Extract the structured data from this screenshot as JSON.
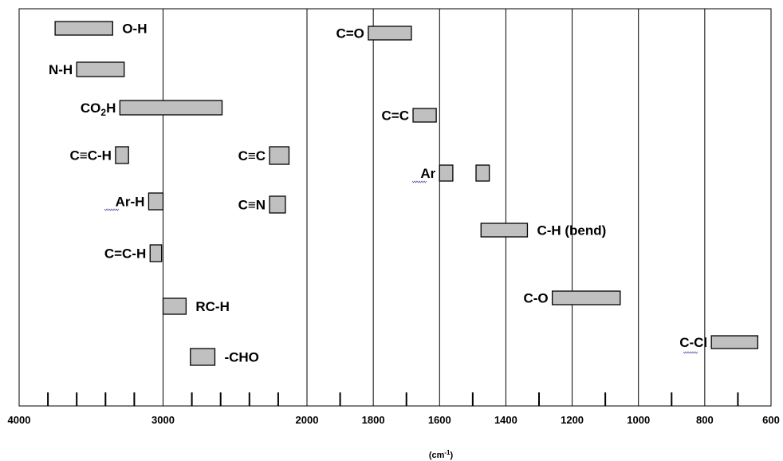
{
  "chart_data": {
    "type": "bar",
    "orientation": "horizontal-range",
    "x_axis": {
      "segments": [
        {
          "from": 4000,
          "to": 2000,
          "tick_labels": [
            4000,
            3000
          ],
          "minor_ticks": [
            3800,
            3600,
            3400,
            3200,
            2800,
            2600,
            2400,
            2200
          ]
        },
        {
          "from": 2000,
          "to": 600,
          "tick_labels": [
            2000,
            1800,
            1600,
            1400,
            1200,
            1000,
            800,
            600
          ],
          "minor_ticks": [
            1900,
            1700,
            1500,
            1300,
            1100,
            900,
            700
          ]
        }
      ],
      "gridlines": [
        3000,
        2000,
        1800,
        1600,
        1400,
        1200,
        1000,
        800
      ],
      "unit_label": "cm",
      "unit_exponent": "-1"
    },
    "bands": [
      {
        "label": "O-H",
        "from": 3750,
        "to": 3350
      },
      {
        "label": "N-H",
        "from": 3600,
        "to": 3270
      },
      {
        "label": "CO",
        "label_sub": "2",
        "label_after": "H",
        "from": 3300,
        "to": 2590
      },
      {
        "label": "C≡C-H",
        "from": 3330,
        "to": 3240
      },
      {
        "label": "Ar-H",
        "from": 3100,
        "to": 3000
      },
      {
        "label": "C=C-H",
        "from": 3090,
        "to": 3010
      },
      {
        "label": "RC-H",
        "from": 3000,
        "to": 2840
      },
      {
        "label": "-CHO",
        "from": 2810,
        "to": 2640
      },
      {
        "label": "C≡C",
        "from": 2260,
        "to": 2125
      },
      {
        "label": "C≡N",
        "from": 2260,
        "to": 2150
      },
      {
        "label": "C=O",
        "from": 1815,
        "to": 1685
      },
      {
        "label": "C=C",
        "from": 1680,
        "to": 1610
      },
      {
        "label": "Ar",
        "from": 1600,
        "to": 1560
      },
      {
        "label": "",
        "from": 1490,
        "to": 1450
      },
      {
        "label": "C-H (bend)",
        "from": 1475,
        "to": 1335
      },
      {
        "label": "C-O",
        "from": 1260,
        "to": 1055
      },
      {
        "label": "C-Cl",
        "from": 780,
        "to": 640
      }
    ]
  }
}
